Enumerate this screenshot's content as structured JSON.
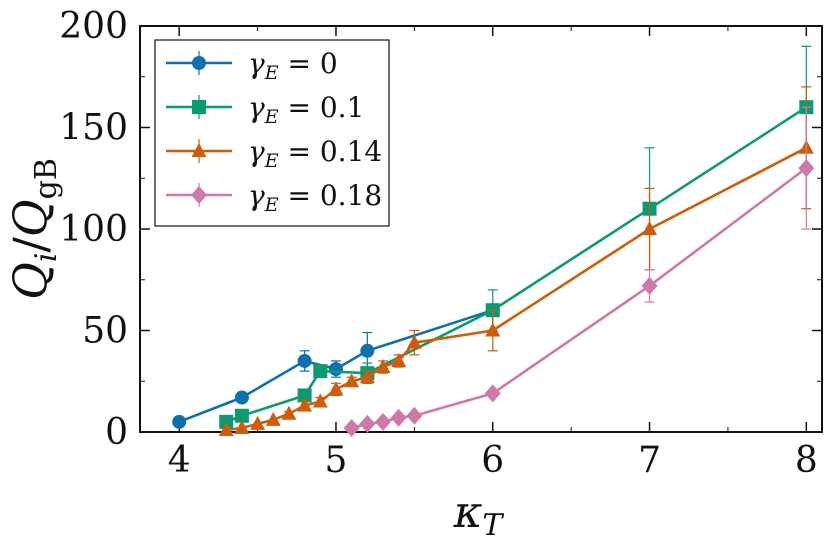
{
  "chart_data": {
    "type": "line",
    "title": "",
    "xlabel": "κ_T",
    "ylabel": "Q_i / Q_gB",
    "xlim": [
      3.75,
      8.1
    ],
    "ylim": [
      0,
      200
    ],
    "xticks": [
      4,
      5,
      6,
      7,
      8
    ],
    "yticks": [
      0,
      50,
      100,
      150,
      200
    ],
    "grid": false,
    "legend_position": "top-left",
    "series": [
      {
        "name": "γ_E = 0",
        "legend_label": "γE = 0",
        "color": "#0f6faf",
        "marker": "circle",
        "x": [
          4.0,
          4.4,
          4.8,
          5.0,
          5.2,
          6.0
        ],
        "y": [
          5,
          17,
          35,
          31,
          40,
          60
        ],
        "err": [
          0,
          2,
          5,
          4,
          9,
          0
        ]
      },
      {
        "name": "γ_E = 0.1",
        "legend_label": "γE = 0.1",
        "color": "#0d9a72",
        "marker": "square",
        "x": [
          4.3,
          4.4,
          4.8,
          4.9,
          5.2,
          6.0,
          7.0,
          8.0
        ],
        "y": [
          5,
          8,
          18,
          30,
          29,
          60,
          110,
          160
        ],
        "err": [
          0,
          0,
          3,
          3,
          5,
          10,
          30,
          30
        ]
      },
      {
        "name": "γ_E = 0.14",
        "legend_label": "γE = 0.14",
        "color": "#cc5d0a",
        "marker": "triangle",
        "x": [
          4.3,
          4.4,
          4.5,
          4.6,
          4.7,
          4.8,
          4.9,
          5.0,
          5.1,
          5.2,
          5.3,
          5.4,
          5.5,
          6.0,
          7.0,
          8.0
        ],
        "y": [
          1,
          2,
          4,
          6,
          9,
          13,
          15,
          21,
          25,
          27,
          32,
          35,
          44,
          50,
          100,
          140
        ],
        "err": [
          0,
          0,
          0,
          0,
          1,
          2,
          2,
          3,
          2,
          3,
          3,
          3,
          6,
          10,
          20,
          30
        ]
      },
      {
        "name": "γ_E = 0.18",
        "legend_label": "γE = 0.18",
        "color": "#cf79aa",
        "marker": "diamond",
        "x": [
          5.1,
          5.2,
          5.3,
          5.4,
          5.5,
          6.0,
          7.0,
          8.0
        ],
        "y": [
          2,
          4,
          5,
          7,
          8,
          19,
          72,
          130
        ],
        "err": [
          0,
          0,
          0,
          0,
          0,
          0,
          8,
          30
        ]
      }
    ]
  }
}
